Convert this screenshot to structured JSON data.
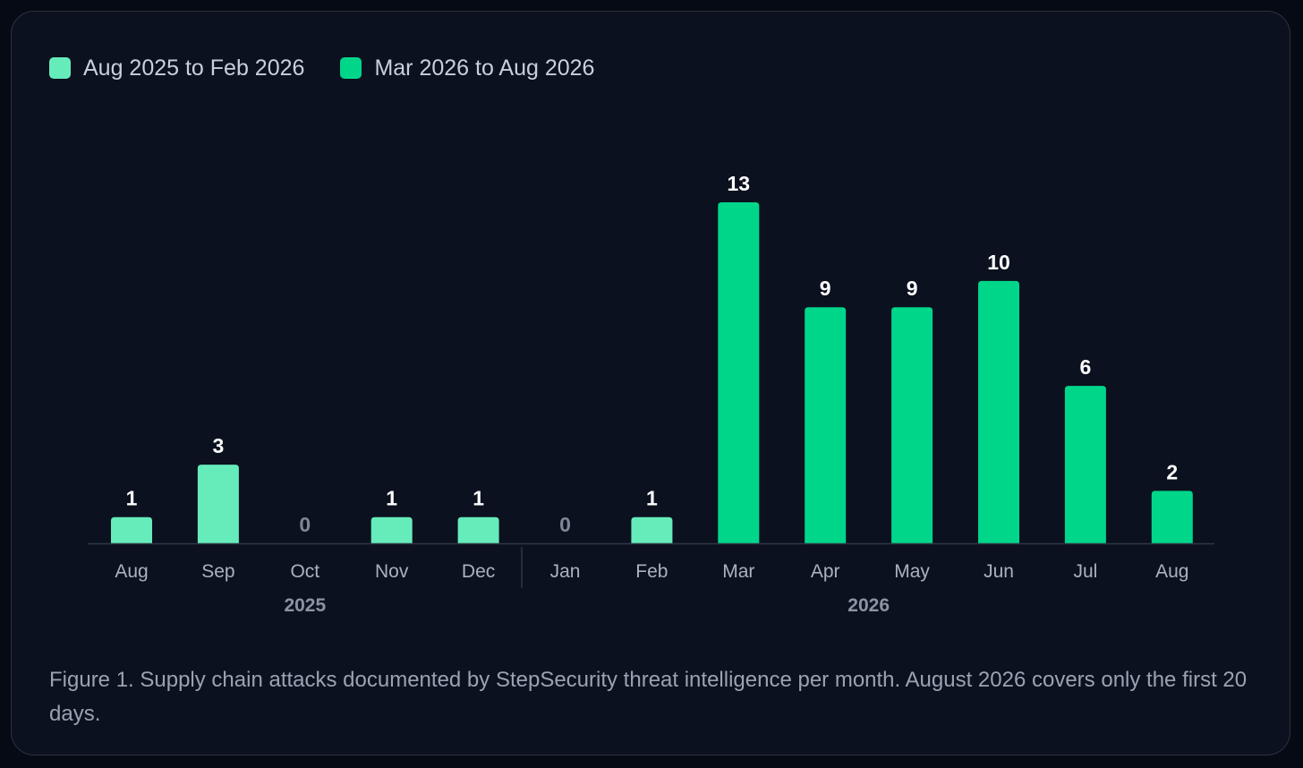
{
  "legend": [
    {
      "label": "Aug 2025 to Feb 2026",
      "color": "#66ebba"
    },
    {
      "label": "Mar 2026 to Aug 2026",
      "color": "#00d68a"
    }
  ],
  "caption": "Figure 1. Supply chain attacks documented by StepSecurity threat intelligence per month. August 2026 covers only the first 20 days.",
  "colors": {
    "zero_label": "#7d8797",
    "value_label": "#ffffff",
    "tick_label": "#aab2bf",
    "year_label": "#8b94a3",
    "axis": "#2f3745"
  },
  "chart_data": {
    "type": "bar",
    "categories": [
      "Aug",
      "Sep",
      "Oct",
      "Nov",
      "Dec",
      "Jan",
      "Feb",
      "Mar",
      "Apr",
      "May",
      "Jun",
      "Jul",
      "Aug"
    ],
    "years": [
      {
        "label": "2025",
        "from": 0,
        "to": 4
      },
      {
        "label": "2026",
        "from": 5,
        "to": 12
      }
    ],
    "series": [
      {
        "name": "Aug 2025 to Feb 2026",
        "values": [
          1,
          3,
          0,
          1,
          1,
          0,
          1,
          null,
          null,
          null,
          null,
          null,
          null
        ]
      },
      {
        "name": "Mar 2026 to Aug 2026",
        "values": [
          null,
          null,
          null,
          null,
          null,
          null,
          null,
          13,
          9,
          9,
          10,
          6,
          2
        ]
      }
    ],
    "ylim": [
      0,
      13
    ],
    "grid": false,
    "legend_position": "top-left"
  }
}
